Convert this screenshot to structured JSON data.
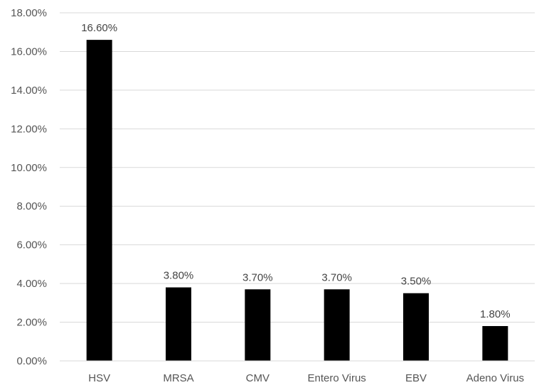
{
  "chart_data": {
    "type": "bar",
    "categories": [
      "HSV",
      "MRSA",
      "CMV",
      "Entero Virus",
      "EBV",
      "Adeno Virus"
    ],
    "values": [
      16.6,
      3.8,
      3.7,
      3.7,
      3.5,
      1.8
    ],
    "data_labels": [
      "16.60%",
      "3.80%",
      "3.70%",
      "3.70%",
      "3.50%",
      "1.80%"
    ],
    "y_ticks": [
      0,
      2,
      4,
      6,
      8,
      10,
      12,
      14,
      16,
      18
    ],
    "y_tick_labels": [
      "0.00%",
      "2.00%",
      "4.00%",
      "6.00%",
      "8.00%",
      "10.00%",
      "12.00%",
      "14.00%",
      "16.00%",
      "18.00%"
    ],
    "ylim": [
      0,
      18
    ],
    "title": "",
    "xlabel": "",
    "ylabel": "",
    "grid": true,
    "legend": "none",
    "bar_color": "#000000",
    "grid_color": "#d9d9d9"
  }
}
